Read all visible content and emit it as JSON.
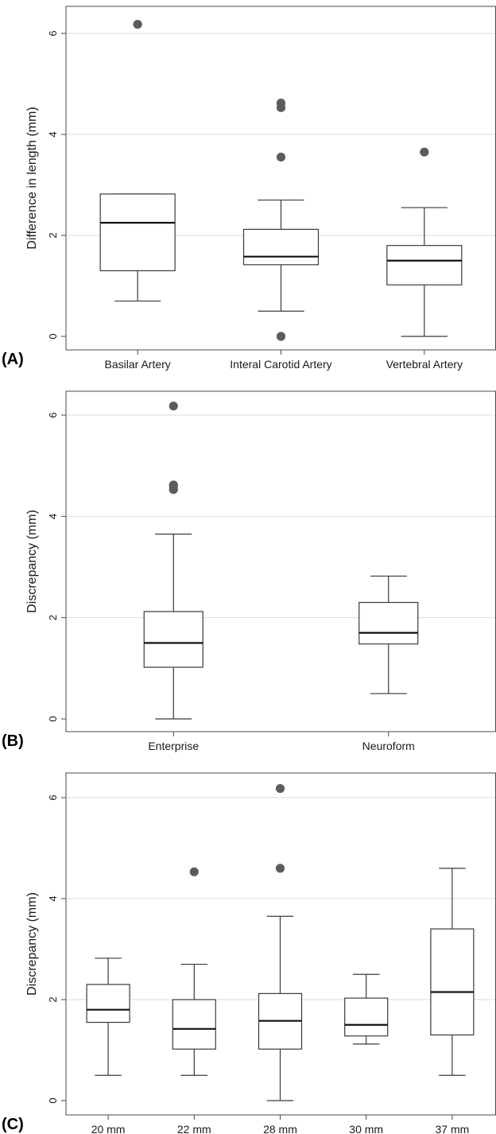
{
  "colors": {
    "box_stroke": "#3a3a3a",
    "median": "#111111",
    "outlier": "#5c5c5c",
    "grid": "#dcdcdc",
    "frame": "#4a4a4a"
  },
  "chart_data": [
    {
      "type": "box",
      "panel_label": "(A)",
      "ylabel": "Difference in length (mm)",
      "ylim": [
        0,
        6.2
      ],
      "yticks": [
        0,
        2,
        4,
        6
      ],
      "grid": true,
      "categories": [
        "Basilar Artery",
        "Interal Carotid Artery",
        "Vertebral Artery"
      ],
      "boxes": [
        {
          "whisker_low": 0.7,
          "q1": 1.3,
          "median": 2.25,
          "q3": 2.82,
          "whisker_high": 2.82,
          "outliers": [
            6.18
          ]
        },
        {
          "whisker_low": 0.5,
          "q1": 1.42,
          "median": 1.58,
          "q3": 2.12,
          "whisker_high": 2.7,
          "outliers": [
            0.0,
            3.55,
            4.53,
            4.62
          ]
        },
        {
          "whisker_low": 0.0,
          "q1": 1.02,
          "median": 1.5,
          "q3": 1.8,
          "whisker_high": 2.55,
          "outliers": [
            3.65
          ]
        }
      ]
    },
    {
      "type": "box",
      "panel_label": "(B)",
      "ylabel": "Discrepancy (mm)",
      "ylim": [
        0,
        6.2
      ],
      "yticks": [
        0,
        2,
        4,
        6
      ],
      "grid": true,
      "categories": [
        "Enterprise",
        "Neuroform"
      ],
      "boxes": [
        {
          "whisker_low": 0.0,
          "q1": 1.02,
          "median": 1.5,
          "q3": 2.12,
          "whisker_high": 3.65,
          "outliers": [
            4.53,
            4.6,
            4.62,
            6.18
          ]
        },
        {
          "whisker_low": 0.5,
          "q1": 1.48,
          "median": 1.7,
          "q3": 2.3,
          "whisker_high": 2.82,
          "outliers": []
        }
      ]
    },
    {
      "type": "box",
      "panel_label": "(C)",
      "ylabel": "Discrepancy (mm)",
      "ylim": [
        0,
        6.2
      ],
      "yticks": [
        0,
        2,
        4,
        6
      ],
      "grid": true,
      "categories": [
        "20 mm",
        "22 mm",
        "28 mm",
        "30 mm",
        "37 mm"
      ],
      "boxes": [
        {
          "whisker_low": 0.5,
          "q1": 1.55,
          "median": 1.8,
          "q3": 2.3,
          "whisker_high": 2.82,
          "outliers": []
        },
        {
          "whisker_low": 0.5,
          "q1": 1.02,
          "median": 1.42,
          "q3": 2.0,
          "whisker_high": 2.7,
          "outliers": [
            4.53
          ]
        },
        {
          "whisker_low": 0.0,
          "q1": 1.02,
          "median": 1.58,
          "q3": 2.12,
          "whisker_high": 3.65,
          "outliers": [
            4.6,
            6.18
          ]
        },
        {
          "whisker_low": 1.12,
          "q1": 1.28,
          "median": 1.5,
          "q3": 2.03,
          "whisker_high": 2.5,
          "outliers": []
        },
        {
          "whisker_low": 0.5,
          "q1": 1.3,
          "median": 2.15,
          "q3": 3.4,
          "whisker_high": 4.6,
          "outliers": []
        }
      ]
    }
  ]
}
